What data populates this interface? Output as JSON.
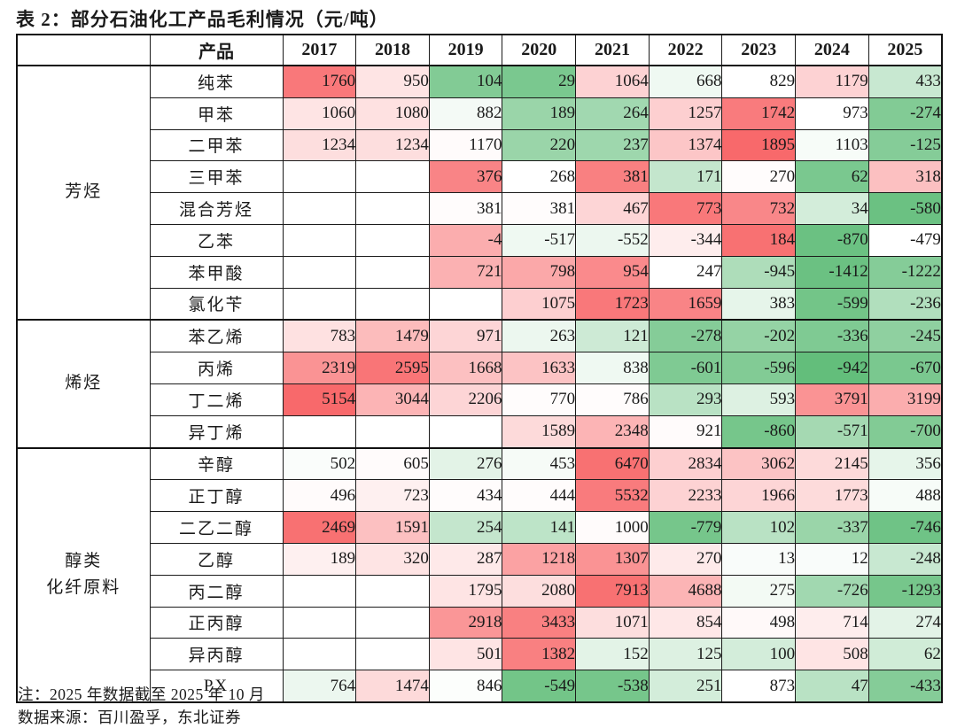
{
  "title": "表 2：部分石油化工产品毛利情况（元/吨）",
  "header": {
    "product": "产品",
    "years": [
      "2017",
      "2018",
      "2019",
      "2020",
      "2021",
      "2022",
      "2023",
      "2024",
      "2025"
    ]
  },
  "palette": {
    "red": "#F8696B",
    "green": "#63BE7B",
    "blank": "#FFFFFF",
    "text": "#1a1a1a"
  },
  "groups": [
    {
      "label_lines": [
        "芳烃"
      ],
      "rows": [
        {
          "name": "纯苯",
          "cells": [
            {
              "v": "1760",
              "t": 0.9
            },
            {
              "v": "950",
              "t": 0.18
            },
            {
              "v": "104",
              "t": -0.8
            },
            {
              "v": "29",
              "t": -0.85
            },
            {
              "v": "1064",
              "t": 0.3
            },
            {
              "v": "668",
              "t": -0.1
            },
            {
              "v": "829",
              "t": 0
            },
            {
              "v": "1179",
              "t": 0.3
            },
            {
              "v": "433",
              "t": -0.35
            }
          ]
        },
        {
          "name": "甲苯",
          "cells": [
            {
              "v": "1060",
              "t": 0.18
            },
            {
              "v": "1080",
              "t": 0.2
            },
            {
              "v": "882",
              "t": -0.07
            },
            {
              "v": "189",
              "t": -0.65
            },
            {
              "v": "264",
              "t": -0.6
            },
            {
              "v": "1257",
              "t": 0.32
            },
            {
              "v": "1742",
              "t": 0.88
            },
            {
              "v": "973",
              "t": 0
            },
            {
              "v": "-274",
              "t": -0.8
            }
          ]
        },
        {
          "name": "二甲苯",
          "cells": [
            {
              "v": "1234",
              "t": 0.22
            },
            {
              "v": "1234",
              "t": 0.22
            },
            {
              "v": "1170",
              "t": 0.03
            },
            {
              "v": "220",
              "t": -0.65
            },
            {
              "v": "237",
              "t": -0.62
            },
            {
              "v": "1374",
              "t": 0.38
            },
            {
              "v": "1895",
              "t": 1.0
            },
            {
              "v": "1103",
              "t": -0.05
            },
            {
              "v": "-125",
              "t": -0.78
            }
          ]
        },
        {
          "name": "三甲苯",
          "cells": [
            {
              "v": "",
              "t": 0
            },
            {
              "v": "",
              "t": 0
            },
            {
              "v": "376",
              "t": 0.82
            },
            {
              "v": "268",
              "t": 0
            },
            {
              "v": "381",
              "t": 0.85
            },
            {
              "v": "171",
              "t": -0.38
            },
            {
              "v": "270",
              "t": 0.02
            },
            {
              "v": "62",
              "t": -0.85
            },
            {
              "v": "318",
              "t": 0.42
            }
          ]
        },
        {
          "name": "混合芳烃",
          "cells": [
            {
              "v": "",
              "t": 0
            },
            {
              "v": "",
              "t": 0
            },
            {
              "v": "381",
              "t": 0.02
            },
            {
              "v": "381",
              "t": 0.02
            },
            {
              "v": "467",
              "t": 0.28
            },
            {
              "v": "773",
              "t": 0.9
            },
            {
              "v": "732",
              "t": 0.8
            },
            {
              "v": "34",
              "t": -0.28
            },
            {
              "v": "-580",
              "t": -0.95
            }
          ]
        },
        {
          "name": "乙苯",
          "cells": [
            {
              "v": "",
              "t": 0
            },
            {
              "v": "",
              "t": 0
            },
            {
              "v": "-4",
              "t": 0.55
            },
            {
              "v": "-517",
              "t": -0.1
            },
            {
              "v": "-552",
              "t": -0.12
            },
            {
              "v": "-344",
              "t": 0.12
            },
            {
              "v": "184",
              "t": 0.95
            },
            {
              "v": "-870",
              "t": -0.95
            },
            {
              "v": "-479",
              "t": 0
            }
          ]
        },
        {
          "name": "苯甲酸",
          "cells": [
            {
              "v": "",
              "t": 0
            },
            {
              "v": "",
              "t": 0
            },
            {
              "v": "721",
              "t": 0.52
            },
            {
              "v": "798",
              "t": 0.58
            },
            {
              "v": "954",
              "t": 0.78
            },
            {
              "v": "247",
              "t": 0
            },
            {
              "v": "-945",
              "t": -0.52
            },
            {
              "v": "-1412",
              "t": -0.95
            },
            {
              "v": "-1222",
              "t": -0.78
            }
          ]
        },
        {
          "name": "氯化苄",
          "cells": [
            {
              "v": "",
              "t": 0
            },
            {
              "v": "",
              "t": 0
            },
            {
              "v": "",
              "t": 0
            },
            {
              "v": "1075",
              "t": 0.32
            },
            {
              "v": "1723",
              "t": 0.9
            },
            {
              "v": "1659",
              "t": 0.82
            },
            {
              "v": "383",
              "t": -0.16
            },
            {
              "v": "-599",
              "t": -0.9
            },
            {
              "v": "-236",
              "t": -0.5
            }
          ]
        }
      ]
    },
    {
      "label_lines": [
        "烯烃"
      ],
      "rows": [
        {
          "name": "苯乙烯",
          "cells": [
            {
              "v": "783",
              "t": 0.2
            },
            {
              "v": "1479",
              "t": 0.45
            },
            {
              "v": "971",
              "t": 0.28
            },
            {
              "v": "263",
              "t": -0.12
            },
            {
              "v": "121",
              "t": -0.32
            },
            {
              "v": "-278",
              "t": -0.78
            },
            {
              "v": "-202",
              "t": -0.68
            },
            {
              "v": "-336",
              "t": -0.82
            },
            {
              "v": "-245",
              "t": -0.72
            }
          ]
        },
        {
          "name": "丙烯",
          "cells": [
            {
              "v": "2319",
              "t": 0.72
            },
            {
              "v": "2595",
              "t": 0.92
            },
            {
              "v": "1668",
              "t": 0.42
            },
            {
              "v": "1633",
              "t": 0.4
            },
            {
              "v": "838",
              "t": -0.1
            },
            {
              "v": "-601",
              "t": -0.82
            },
            {
              "v": "-596",
              "t": -0.8
            },
            {
              "v": "-942",
              "t": -1.0
            },
            {
              "v": "-670",
              "t": -0.85
            }
          ]
        },
        {
          "name": "丁二烯",
          "cells": [
            {
              "v": "5154",
              "t": 1.0
            },
            {
              "v": "3044",
              "t": 0.5
            },
            {
              "v": "2206",
              "t": 0.28
            },
            {
              "v": "770",
              "t": 0.02
            },
            {
              "v": "786",
              "t": 0.02
            },
            {
              "v": "293",
              "t": -0.45
            },
            {
              "v": "593",
              "t": -0.22
            },
            {
              "v": "3791",
              "t": 0.72
            },
            {
              "v": "3199",
              "t": 0.55
            }
          ]
        },
        {
          "name": "异丁烯",
          "cells": [
            {
              "v": "",
              "t": 0
            },
            {
              "v": "",
              "t": 0
            },
            {
              "v": "",
              "t": 0
            },
            {
              "v": "1589",
              "t": 0.25
            },
            {
              "v": "2348",
              "t": 0.5
            },
            {
              "v": "921",
              "t": 0.03
            },
            {
              "v": "-860",
              "t": -0.88
            },
            {
              "v": "-571",
              "t": -0.58
            },
            {
              "v": "-700",
              "t": -0.8
            }
          ]
        }
      ]
    },
    {
      "label_lines": [
        "醇类",
        "化纤原料"
      ],
      "rows": [
        {
          "name": "辛醇",
          "cells": [
            {
              "v": "502",
              "t": -0.03
            },
            {
              "v": "605",
              "t": 0.03
            },
            {
              "v": "276",
              "t": -0.18
            },
            {
              "v": "453",
              "t": -0.06
            },
            {
              "v": "6470",
              "t": 0.95
            },
            {
              "v": "2834",
              "t": 0.32
            },
            {
              "v": "3062",
              "t": 0.4
            },
            {
              "v": "2145",
              "t": 0.25
            },
            {
              "v": "356",
              "t": -0.16
            }
          ]
        },
        {
          "name": "正丁醇",
          "cells": [
            {
              "v": "496",
              "t": 0.03
            },
            {
              "v": "723",
              "t": 0.1
            },
            {
              "v": "434",
              "t": 0.02
            },
            {
              "v": "444",
              "t": 0.02
            },
            {
              "v": "5532",
              "t": 0.88
            },
            {
              "v": "2233",
              "t": 0.3
            },
            {
              "v": "1966",
              "t": 0.28
            },
            {
              "v": "1773",
              "t": 0.24
            },
            {
              "v": "488",
              "t": -0.05
            }
          ]
        },
        {
          "name": "二乙二醇",
          "cells": [
            {
              "v": "2469",
              "t": 0.95
            },
            {
              "v": "1591",
              "t": 0.42
            },
            {
              "v": "254",
              "t": -0.38
            },
            {
              "v": "141",
              "t": -0.42
            },
            {
              "v": "1000",
              "t": 0.03
            },
            {
              "v": "-779",
              "t": -0.88
            },
            {
              "v": "102",
              "t": -0.45
            },
            {
              "v": "-337",
              "t": -0.65
            },
            {
              "v": "-746",
              "t": -0.92
            }
          ]
        },
        {
          "name": "乙醇",
          "cells": [
            {
              "v": "189",
              "t": 0.1
            },
            {
              "v": "320",
              "t": 0.18
            },
            {
              "v": "287",
              "t": 0.15
            },
            {
              "v": "1218",
              "t": 0.62
            },
            {
              "v": "1307",
              "t": 0.72
            },
            {
              "v": "270",
              "t": 0.14
            },
            {
              "v": "13",
              "t": -0.04
            },
            {
              "v": "12",
              "t": -0.04
            },
            {
              "v": "-248",
              "t": -0.35
            }
          ]
        },
        {
          "name": "丙二醇",
          "cells": [
            {
              "v": "",
              "t": 0
            },
            {
              "v": "",
              "t": 0
            },
            {
              "v": "1795",
              "t": 0.18
            },
            {
              "v": "2080",
              "t": 0.22
            },
            {
              "v": "7913",
              "t": 0.95
            },
            {
              "v": "4688",
              "t": 0.5
            },
            {
              "v": "275",
              "t": -0.08
            },
            {
              "v": "-726",
              "t": -0.6
            },
            {
              "v": "-1293",
              "t": -0.88
            }
          ]
        },
        {
          "name": "正丙醇",
          "cells": [
            {
              "v": "",
              "t": 0
            },
            {
              "v": "",
              "t": 0
            },
            {
              "v": "2918",
              "t": 0.7
            },
            {
              "v": "3433",
              "t": 0.85
            },
            {
              "v": "1071",
              "t": 0.22
            },
            {
              "v": "854",
              "t": 0.16
            },
            {
              "v": "498",
              "t": 0.04
            },
            {
              "v": "714",
              "t": 0.12
            },
            {
              "v": "274",
              "t": -0.18
            }
          ]
        },
        {
          "name": "异丙醇",
          "cells": [
            {
              "v": "",
              "t": 0
            },
            {
              "v": "",
              "t": 0
            },
            {
              "v": "501",
              "t": 0.18
            },
            {
              "v": "1382",
              "t": 0.85
            },
            {
              "v": "152",
              "t": -0.18
            },
            {
              "v": "125",
              "t": -0.22
            },
            {
              "v": "100",
              "t": -0.28
            },
            {
              "v": "508",
              "t": 0.18
            },
            {
              "v": "62",
              "t": -0.3
            }
          ]
        },
        {
          "name": "PX",
          "cells": [
            {
              "v": "764",
              "t": -0.12
            },
            {
              "v": "1474",
              "t": 0.25
            },
            {
              "v": "846",
              "t": -0.02
            },
            {
              "v": "-549",
              "t": -0.9
            },
            {
              "v": "-538",
              "t": -0.88
            },
            {
              "v": "251",
              "t": -0.28
            },
            {
              "v": "873",
              "t": 0
            },
            {
              "v": "47",
              "t": -0.45
            },
            {
              "v": "-433",
              "t": -0.78
            }
          ]
        }
      ]
    }
  ],
  "notes": [
    "注：2025 年数据截至 2025 年 10 月",
    "数据来源：百川盈孚，东北证券"
  ]
}
